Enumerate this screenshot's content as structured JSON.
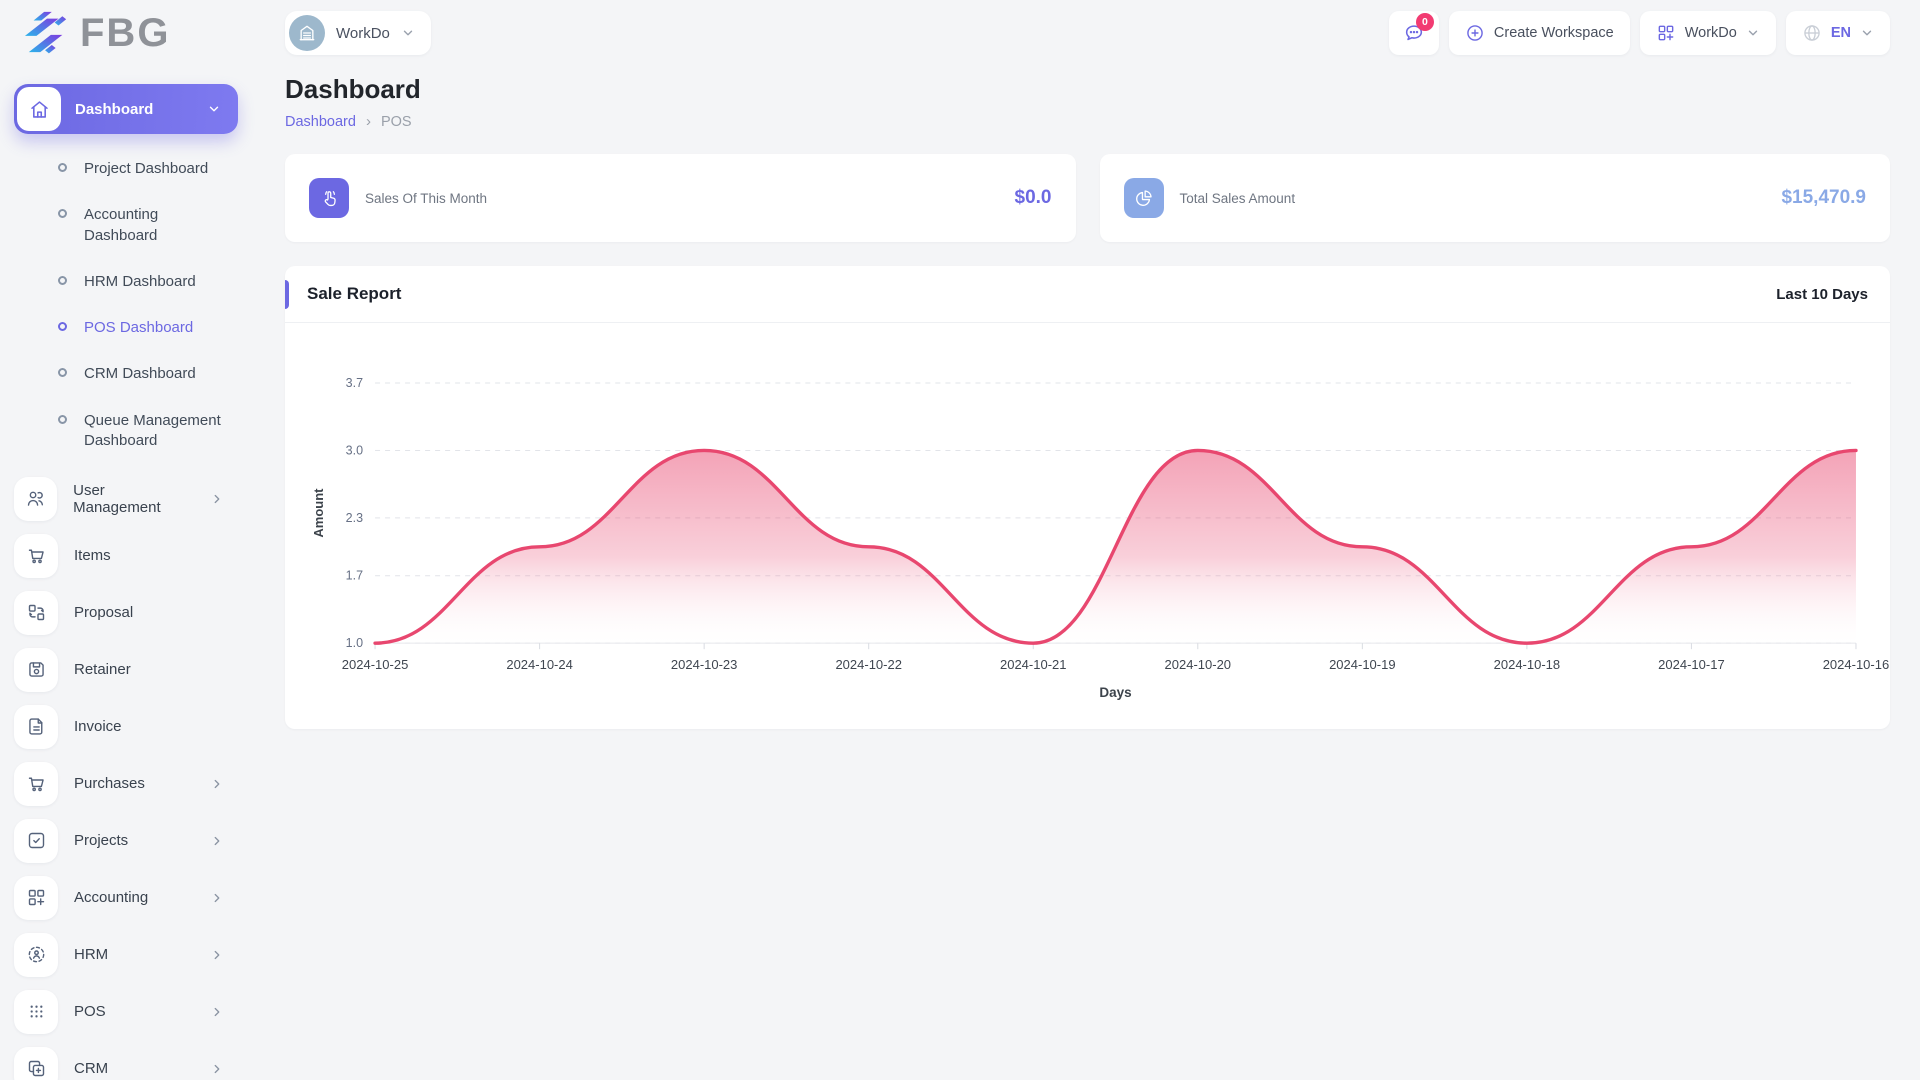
{
  "brand": {
    "name": "FBG"
  },
  "topbar": {
    "workspace": {
      "label": "WorkDo",
      "avatar_icon": "building-icon"
    },
    "notification_badge": "0",
    "create_workspace_label": "Create Workspace",
    "workspace_menu_label": "WorkDo",
    "language_label": "EN"
  },
  "sidebar": {
    "active": {
      "label": "Dashboard",
      "icon": "home-icon"
    },
    "dashboard_children": [
      {
        "label": "Project Dashboard",
        "active": false
      },
      {
        "label": "Accounting Dashboard",
        "active": false
      },
      {
        "label": "HRM Dashboard",
        "active": false
      },
      {
        "label": "POS Dashboard",
        "active": true
      },
      {
        "label": "CRM Dashboard",
        "active": false
      },
      {
        "label": "Queue Management Dashboard",
        "active": false
      }
    ],
    "items": [
      {
        "label": "User Management",
        "icon": "users-icon",
        "chevron": true
      },
      {
        "label": "Items",
        "icon": "cart-icon",
        "chevron": false
      },
      {
        "label": "Proposal",
        "icon": "proposal-icon",
        "chevron": false
      },
      {
        "label": "Retainer",
        "icon": "retainer-icon",
        "chevron": false
      },
      {
        "label": "Invoice",
        "icon": "invoice-icon",
        "chevron": false
      },
      {
        "label": "Purchases",
        "icon": "cart-icon",
        "chevron": true
      },
      {
        "label": "Projects",
        "icon": "projects-icon",
        "chevron": true
      },
      {
        "label": "Accounting",
        "icon": "grid-plus-icon",
        "chevron": true
      },
      {
        "label": "HRM",
        "icon": "hrm-icon",
        "chevron": true
      },
      {
        "label": "POS",
        "icon": "pos-dots-icon",
        "chevron": true
      },
      {
        "label": "CRM",
        "icon": "crm-icon",
        "chevron": true
      }
    ]
  },
  "page": {
    "title": "Dashboard",
    "breadcrumb": [
      "Dashboard",
      "POS"
    ]
  },
  "stats": [
    {
      "label": "Sales Of This Month",
      "value": "$0.0",
      "icon": "tap-icon",
      "color": "#6c68e2"
    },
    {
      "label": "Total Sales Amount",
      "value": "$15,470.9",
      "icon": "pie-chart-icon",
      "color": "#8aa9e6"
    }
  ],
  "chart_card": {
    "title": "Sale Report",
    "range_label": "Last 10 Days"
  },
  "chart_data": {
    "type": "area",
    "x": [
      "2024-10-25",
      "2024-10-24",
      "2024-10-23",
      "2024-10-22",
      "2024-10-21",
      "2024-10-20",
      "2024-10-19",
      "2024-10-18",
      "2024-10-17",
      "2024-10-16"
    ],
    "series": [
      {
        "name": "Amount",
        "values": [
          1.0,
          2.0,
          3.0,
          2.0,
          1.0,
          3.0,
          2.0,
          1.0,
          2.0,
          3.0
        ]
      }
    ],
    "xlabel": "Days",
    "ylabel": "Amount",
    "yticks": [
      1.0,
      1.7,
      2.3,
      3.0,
      3.7
    ],
    "ylim": [
      1.0,
      3.7
    ],
    "line_color": "#e8476f",
    "grid": "dashed-horizontal",
    "legend": "none"
  },
  "colors": {
    "primary": "#6c68e2",
    "info": "#8aa9e6",
    "danger": "#f23b72",
    "chart_line": "#e8476f"
  }
}
